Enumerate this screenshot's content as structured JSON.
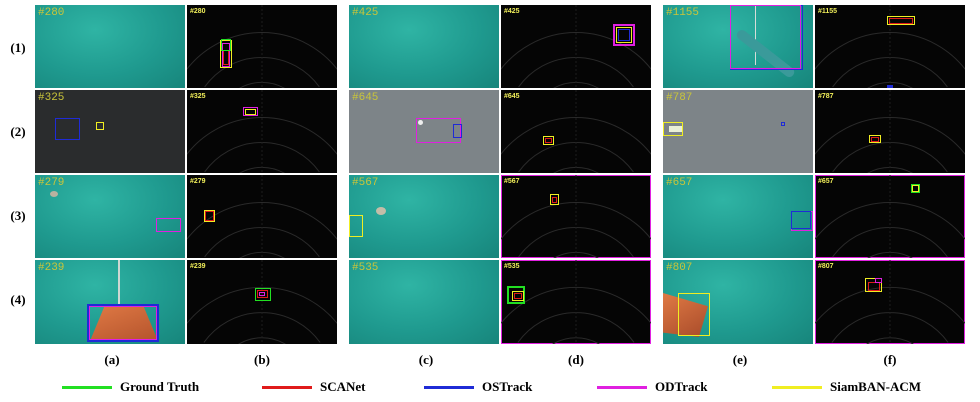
{
  "row_labels": [
    "(1)",
    "(2)",
    "(3)",
    "(4)"
  ],
  "column_labels": [
    "(a)",
    "(b)",
    "(c)",
    "(d)",
    "(e)",
    "(f)"
  ],
  "frames": {
    "a1": "#280",
    "b1": "#280",
    "a2": "#325",
    "b2": "#325",
    "a3": "#279",
    "b3": "#279",
    "a4": "#239",
    "b4": "#239",
    "c1": "#425",
    "d1": "#425",
    "c2": "#645",
    "d2": "#645",
    "c3": "#567",
    "d3": "#567",
    "c4": "#535",
    "d4": "#535",
    "e1": "#1155",
    "f1": "#1155",
    "e2": "#787",
    "f2": "#787",
    "e3": "#657",
    "f3": "#657",
    "e4": "#807",
    "f4": "#807"
  },
  "legend": [
    {
      "label": "Ground Truth",
      "color": "#22e022"
    },
    {
      "label": "SCANet",
      "color": "#e01b1b"
    },
    {
      "label": "OSTrack",
      "color": "#1f2bd6"
    },
    {
      "label": "ODTrack",
      "color": "#e020e0"
    },
    {
      "label": "SiamBAN-ACM",
      "color": "#f0ee22"
    }
  ],
  "colors": {
    "ground_truth": "#22e022",
    "scanet": "#e01b1b",
    "ostrack": "#1f2bd6",
    "odtrack": "#e020e0",
    "siamban_acm": "#f0ee22",
    "camera_water": "#1f9a8f",
    "sonar_bg": "#050505"
  }
}
